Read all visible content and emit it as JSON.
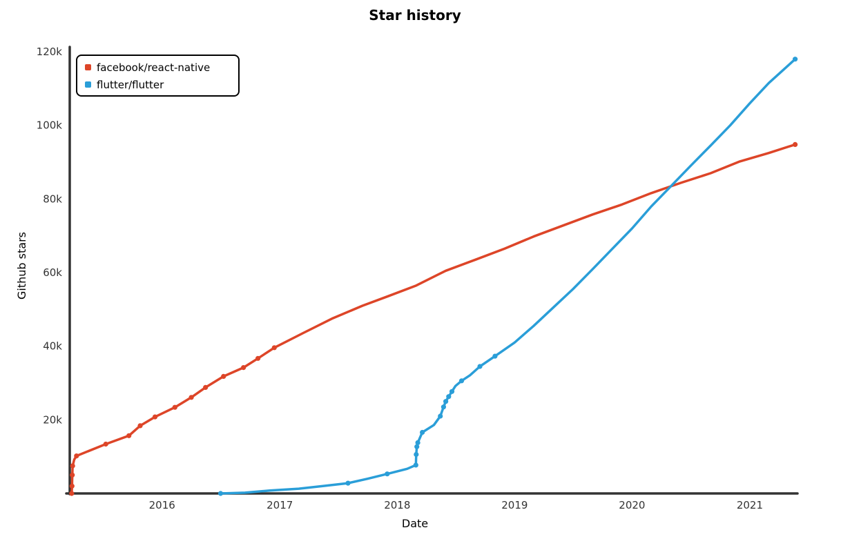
{
  "chart_data": {
    "type": "line",
    "title": "Star history",
    "xlabel": "Date",
    "ylabel": "Github stars",
    "xlim": [
      "2015-03-20",
      "2021-05-25"
    ],
    "ylim": [
      0,
      120000
    ],
    "x_ticks": [
      {
        "date": "2016-01-01",
        "label": "2016"
      },
      {
        "date": "2017-01-01",
        "label": "2017"
      },
      {
        "date": "2018-01-01",
        "label": "2018"
      },
      {
        "date": "2019-01-01",
        "label": "2019"
      },
      {
        "date": "2020-01-01",
        "label": "2020"
      },
      {
        "date": "2021-01-01",
        "label": "2021"
      }
    ],
    "y_ticks": [
      {
        "value": 20000,
        "label": "20k"
      },
      {
        "value": 40000,
        "label": "40k"
      },
      {
        "value": 60000,
        "label": "60k"
      },
      {
        "value": 80000,
        "label": "80k"
      },
      {
        "value": 100000,
        "label": "100k"
      },
      {
        "value": 120000,
        "label": "120k"
      }
    ],
    "legend_position": "top-left",
    "series": [
      {
        "name": "facebook/react-native",
        "color": "#dd4528",
        "points": [
          [
            "2015-03-26",
            0
          ],
          [
            "2015-03-27",
            2000
          ],
          [
            "2015-03-28",
            5000
          ],
          [
            "2015-03-29",
            7500
          ],
          [
            "2015-04-03",
            9200
          ],
          [
            "2015-04-10",
            10200
          ],
          [
            "2015-07-10",
            13400
          ],
          [
            "2015-09-20",
            15700
          ],
          [
            "2015-10-25",
            18400
          ],
          [
            "2015-12-10",
            20800
          ],
          [
            "2016-02-10",
            23400
          ],
          [
            "2016-04-01",
            26100
          ],
          [
            "2016-05-15",
            28800
          ],
          [
            "2016-07-10",
            31800
          ],
          [
            "2016-09-10",
            34200
          ],
          [
            "2016-10-25",
            36700
          ],
          [
            "2016-12-15",
            39600
          ],
          [
            "2017-03-15",
            43600
          ],
          [
            "2017-06-15",
            47600
          ],
          [
            "2017-09-15",
            51000
          ],
          [
            "2017-12-01",
            53500
          ],
          [
            "2018-03-01",
            56500
          ],
          [
            "2018-06-01",
            60500
          ],
          [
            "2018-09-01",
            63500
          ],
          [
            "2018-12-01",
            66500
          ],
          [
            "2019-03-01",
            69800
          ],
          [
            "2019-06-01",
            72800
          ],
          [
            "2019-09-01",
            75800
          ],
          [
            "2019-12-01",
            78500
          ],
          [
            "2020-03-01",
            81600
          ],
          [
            "2020-06-01",
            84400
          ],
          [
            "2020-09-01",
            87000
          ],
          [
            "2020-12-01",
            90200
          ],
          [
            "2021-03-01",
            92500
          ],
          [
            "2021-05-22",
            94800
          ]
        ],
        "markers": [
          [
            "2015-03-26",
            0
          ],
          [
            "2015-03-27",
            2000
          ],
          [
            "2015-03-28",
            5000
          ],
          [
            "2015-03-29",
            7500
          ],
          [
            "2015-04-10",
            10200
          ],
          [
            "2015-07-10",
            13400
          ],
          [
            "2015-09-20",
            15700
          ],
          [
            "2015-10-25",
            18400
          ],
          [
            "2015-12-10",
            20800
          ],
          [
            "2016-02-10",
            23400
          ],
          [
            "2016-04-01",
            26100
          ],
          [
            "2016-05-15",
            28800
          ],
          [
            "2016-07-10",
            31800
          ],
          [
            "2016-09-10",
            34200
          ],
          [
            "2016-10-25",
            36700
          ],
          [
            "2016-12-15",
            39600
          ],
          [
            "2021-05-22",
            94800
          ]
        ]
      },
      {
        "name": "flutter/flutter",
        "color": "#2a9ed8",
        "points": [
          [
            "2016-07-01",
            0
          ],
          [
            "2016-09-15",
            200
          ],
          [
            "2016-12-01",
            800
          ],
          [
            "2017-03-01",
            1300
          ],
          [
            "2017-05-15",
            2000
          ],
          [
            "2017-08-01",
            2800
          ],
          [
            "2017-10-01",
            4000
          ],
          [
            "2017-12-01",
            5300
          ],
          [
            "2018-02-01",
            6700
          ],
          [
            "2018-02-28",
            7700
          ],
          [
            "2018-03-01",
            10600
          ],
          [
            "2018-03-03",
            12700
          ],
          [
            "2018-03-06",
            13800
          ],
          [
            "2018-03-20",
            16600
          ],
          [
            "2018-04-25",
            18600
          ],
          [
            "2018-05-15",
            21000
          ],
          [
            "2018-05-25",
            23500
          ],
          [
            "2018-06-01",
            25000
          ],
          [
            "2018-06-10",
            26300
          ],
          [
            "2018-06-20",
            27700
          ],
          [
            "2018-07-01",
            29200
          ],
          [
            "2018-07-20",
            30600
          ],
          [
            "2018-08-15",
            32100
          ],
          [
            "2018-09-15",
            34500
          ],
          [
            "2018-11-01",
            37300
          ],
          [
            "2019-01-01",
            41000
          ],
          [
            "2019-03-01",
            45500
          ],
          [
            "2019-05-01",
            50500
          ],
          [
            "2019-07-01",
            55500
          ],
          [
            "2019-09-01",
            61000
          ],
          [
            "2019-11-01",
            66500
          ],
          [
            "2020-01-01",
            72000
          ],
          [
            "2020-03-01",
            78000
          ],
          [
            "2020-05-01",
            83500
          ],
          [
            "2020-07-01",
            89000
          ],
          [
            "2020-09-01",
            94500
          ],
          [
            "2020-11-01",
            100000
          ],
          [
            "2021-01-01",
            106000
          ],
          [
            "2021-03-01",
            111500
          ],
          [
            "2021-05-22",
            118000
          ]
        ],
        "markers": [
          [
            "2016-07-01",
            0
          ],
          [
            "2017-08-01",
            2800
          ],
          [
            "2017-12-01",
            5300
          ],
          [
            "2018-02-28",
            7700
          ],
          [
            "2018-03-01",
            10600
          ],
          [
            "2018-03-03",
            12700
          ],
          [
            "2018-03-06",
            13800
          ],
          [
            "2018-03-20",
            16600
          ],
          [
            "2018-05-15",
            21000
          ],
          [
            "2018-05-25",
            23500
          ],
          [
            "2018-06-01",
            25000
          ],
          [
            "2018-06-10",
            26300
          ],
          [
            "2018-06-20",
            27700
          ],
          [
            "2018-07-20",
            30600
          ],
          [
            "2018-09-15",
            34500
          ],
          [
            "2018-11-01",
            37300
          ],
          [
            "2021-05-22",
            118000
          ]
        ]
      }
    ]
  }
}
